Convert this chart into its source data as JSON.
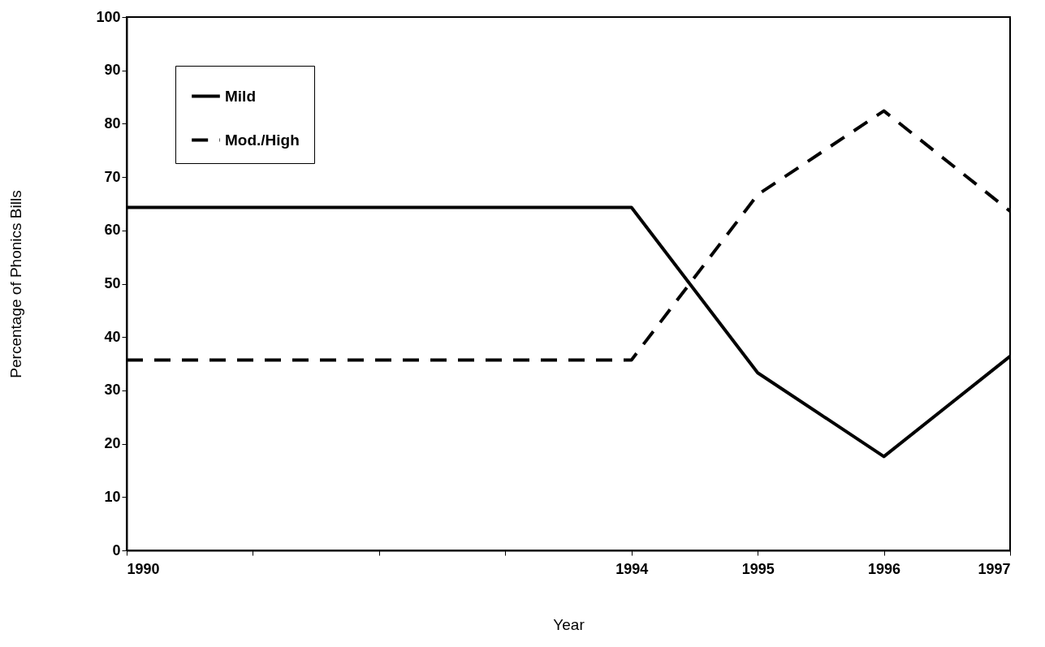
{
  "chart_data": {
    "type": "line",
    "xlabel": "Year",
    "ylabel": "Percentage of Phonics Bills",
    "x": [
      1990,
      1994,
      1995,
      1996,
      1997
    ],
    "series": [
      {
        "name": "Mild",
        "color": "#000000",
        "line_style": "solid",
        "values": [
          64.3,
          64.3,
          33.3,
          17.6,
          36.4
        ]
      },
      {
        "name": "Mod./High",
        "color": "#000000",
        "line_style": "dashed",
        "values": [
          35.7,
          35.7,
          66.7,
          82.4,
          63.6
        ]
      }
    ],
    "xlim": [
      1990,
      1997
    ],
    "xticks": [
      1990,
      {
        "value": 1991,
        "label": null
      },
      {
        "value": 1992,
        "label": null
      },
      {
        "value": 1993,
        "label": null
      },
      1994,
      1995,
      1996,
      1997
    ],
    "ylim": [
      0,
      100
    ],
    "yticks": [
      0,
      10,
      20,
      30,
      40,
      50,
      60,
      70,
      80,
      90,
      100
    ],
    "grid": false,
    "legend": "top left",
    "marker": "none"
  }
}
